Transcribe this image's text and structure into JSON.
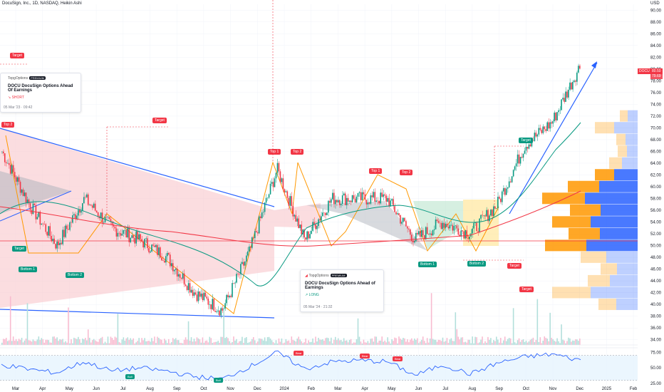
{
  "header": {
    "title": "DocuSign, Inc., 1D, NASDAQ, Heikin Ashi",
    "currency": "USD"
  },
  "price_axis": {
    "ticks": [
      "90.00",
      "88.00",
      "86.00",
      "84.00",
      "82.00",
      "80.00",
      "78.00",
      "76.00",
      "74.00",
      "72.00",
      "70.00",
      "68.00",
      "66.00",
      "64.00",
      "62.00",
      "60.00",
      "58.00",
      "56.00",
      "54.00",
      "52.00",
      "50.00",
      "48.00",
      "46.00",
      "44.00",
      "42.00",
      "40.00",
      "38.00",
      "36.00",
      "34.00"
    ],
    "current_price": "80.50",
    "current_sub": "79.69",
    "ticker_tag": "DOCU"
  },
  "time_axis": {
    "labels": [
      "Mar",
      "Apr",
      "May",
      "Jun",
      "Jul",
      "Aug",
      "Sep",
      "Oct",
      "Nov",
      "Dec",
      "2024",
      "Feb",
      "Mar",
      "Apr",
      "May",
      "Jun",
      "Jul",
      "Aug",
      "Sep",
      "Oct",
      "Nov",
      "Dec",
      "2025",
      "Feb"
    ]
  },
  "rsi_axis": {
    "ticks": [
      "75.00",
      "50.00",
      "25.00"
    ]
  },
  "ideas": [
    {
      "brand": "TopgOptions",
      "badge": "PREMIUM",
      "title": "DOCU DocuSign Options Ahead Of Earnings",
      "direction": "SHORT",
      "timestamp": "05 Mar '23 · 09:42"
    },
    {
      "brand": "TopgOptions",
      "badge": "PREMIUM",
      "title": "DOCU DocuSign Options Ahead of Earnings",
      "direction": "LONG",
      "timestamp": "05 Mar '24 · 21:32"
    }
  ],
  "pattern_labels": {
    "top2_left": "Top 2",
    "top1_a": "Top 1",
    "top2_a": "Top 2",
    "top1_b": "Top 1",
    "top2_b": "Top 2",
    "bottom1_a": "Bottom 1",
    "bottom2_a": "Bottom 2",
    "bottom1_b": "Bottom 1",
    "bottom2_b": "Bottom 2",
    "target": "Target"
  },
  "rsi_labels": {
    "bull": "Bull",
    "bear": "Bear"
  },
  "colors": {
    "up": "#089981",
    "down": "#f23645",
    "grid": "#f0f3fa",
    "blue_line": "#2962ff",
    "orange_line": "#ff9800",
    "ma_green": "#089981",
    "ma_red": "#f23645",
    "vp_blue": "#2962ff",
    "vp_orange": "#ff9800"
  },
  "chart_data": {
    "type": "candlestick",
    "y_axis_range": [
      33,
      91
    ],
    "rsi_range": [
      25,
      80
    ],
    "x": [
      "Mar",
      "Apr",
      "May",
      "Jun",
      "Jul",
      "Aug",
      "Sep",
      "Oct",
      "Nov",
      "Dec",
      "2024",
      "Feb",
      "Mar",
      "Apr",
      "May",
      "Jun",
      "Jul",
      "Aug",
      "Sep",
      "Oct",
      "Nov",
      "Dec"
    ],
    "close": [
      66,
      57,
      50,
      58,
      53,
      51,
      48,
      42,
      39,
      49,
      63,
      51,
      58,
      58,
      58,
      51,
      54,
      52,
      57,
      67,
      71,
      80.5
    ],
    "rsi": [
      55,
      48,
      42,
      60,
      45,
      50,
      45,
      36,
      32,
      52,
      75,
      48,
      60,
      62,
      60,
      38,
      55,
      40,
      58,
      68,
      72,
      62
    ]
  }
}
